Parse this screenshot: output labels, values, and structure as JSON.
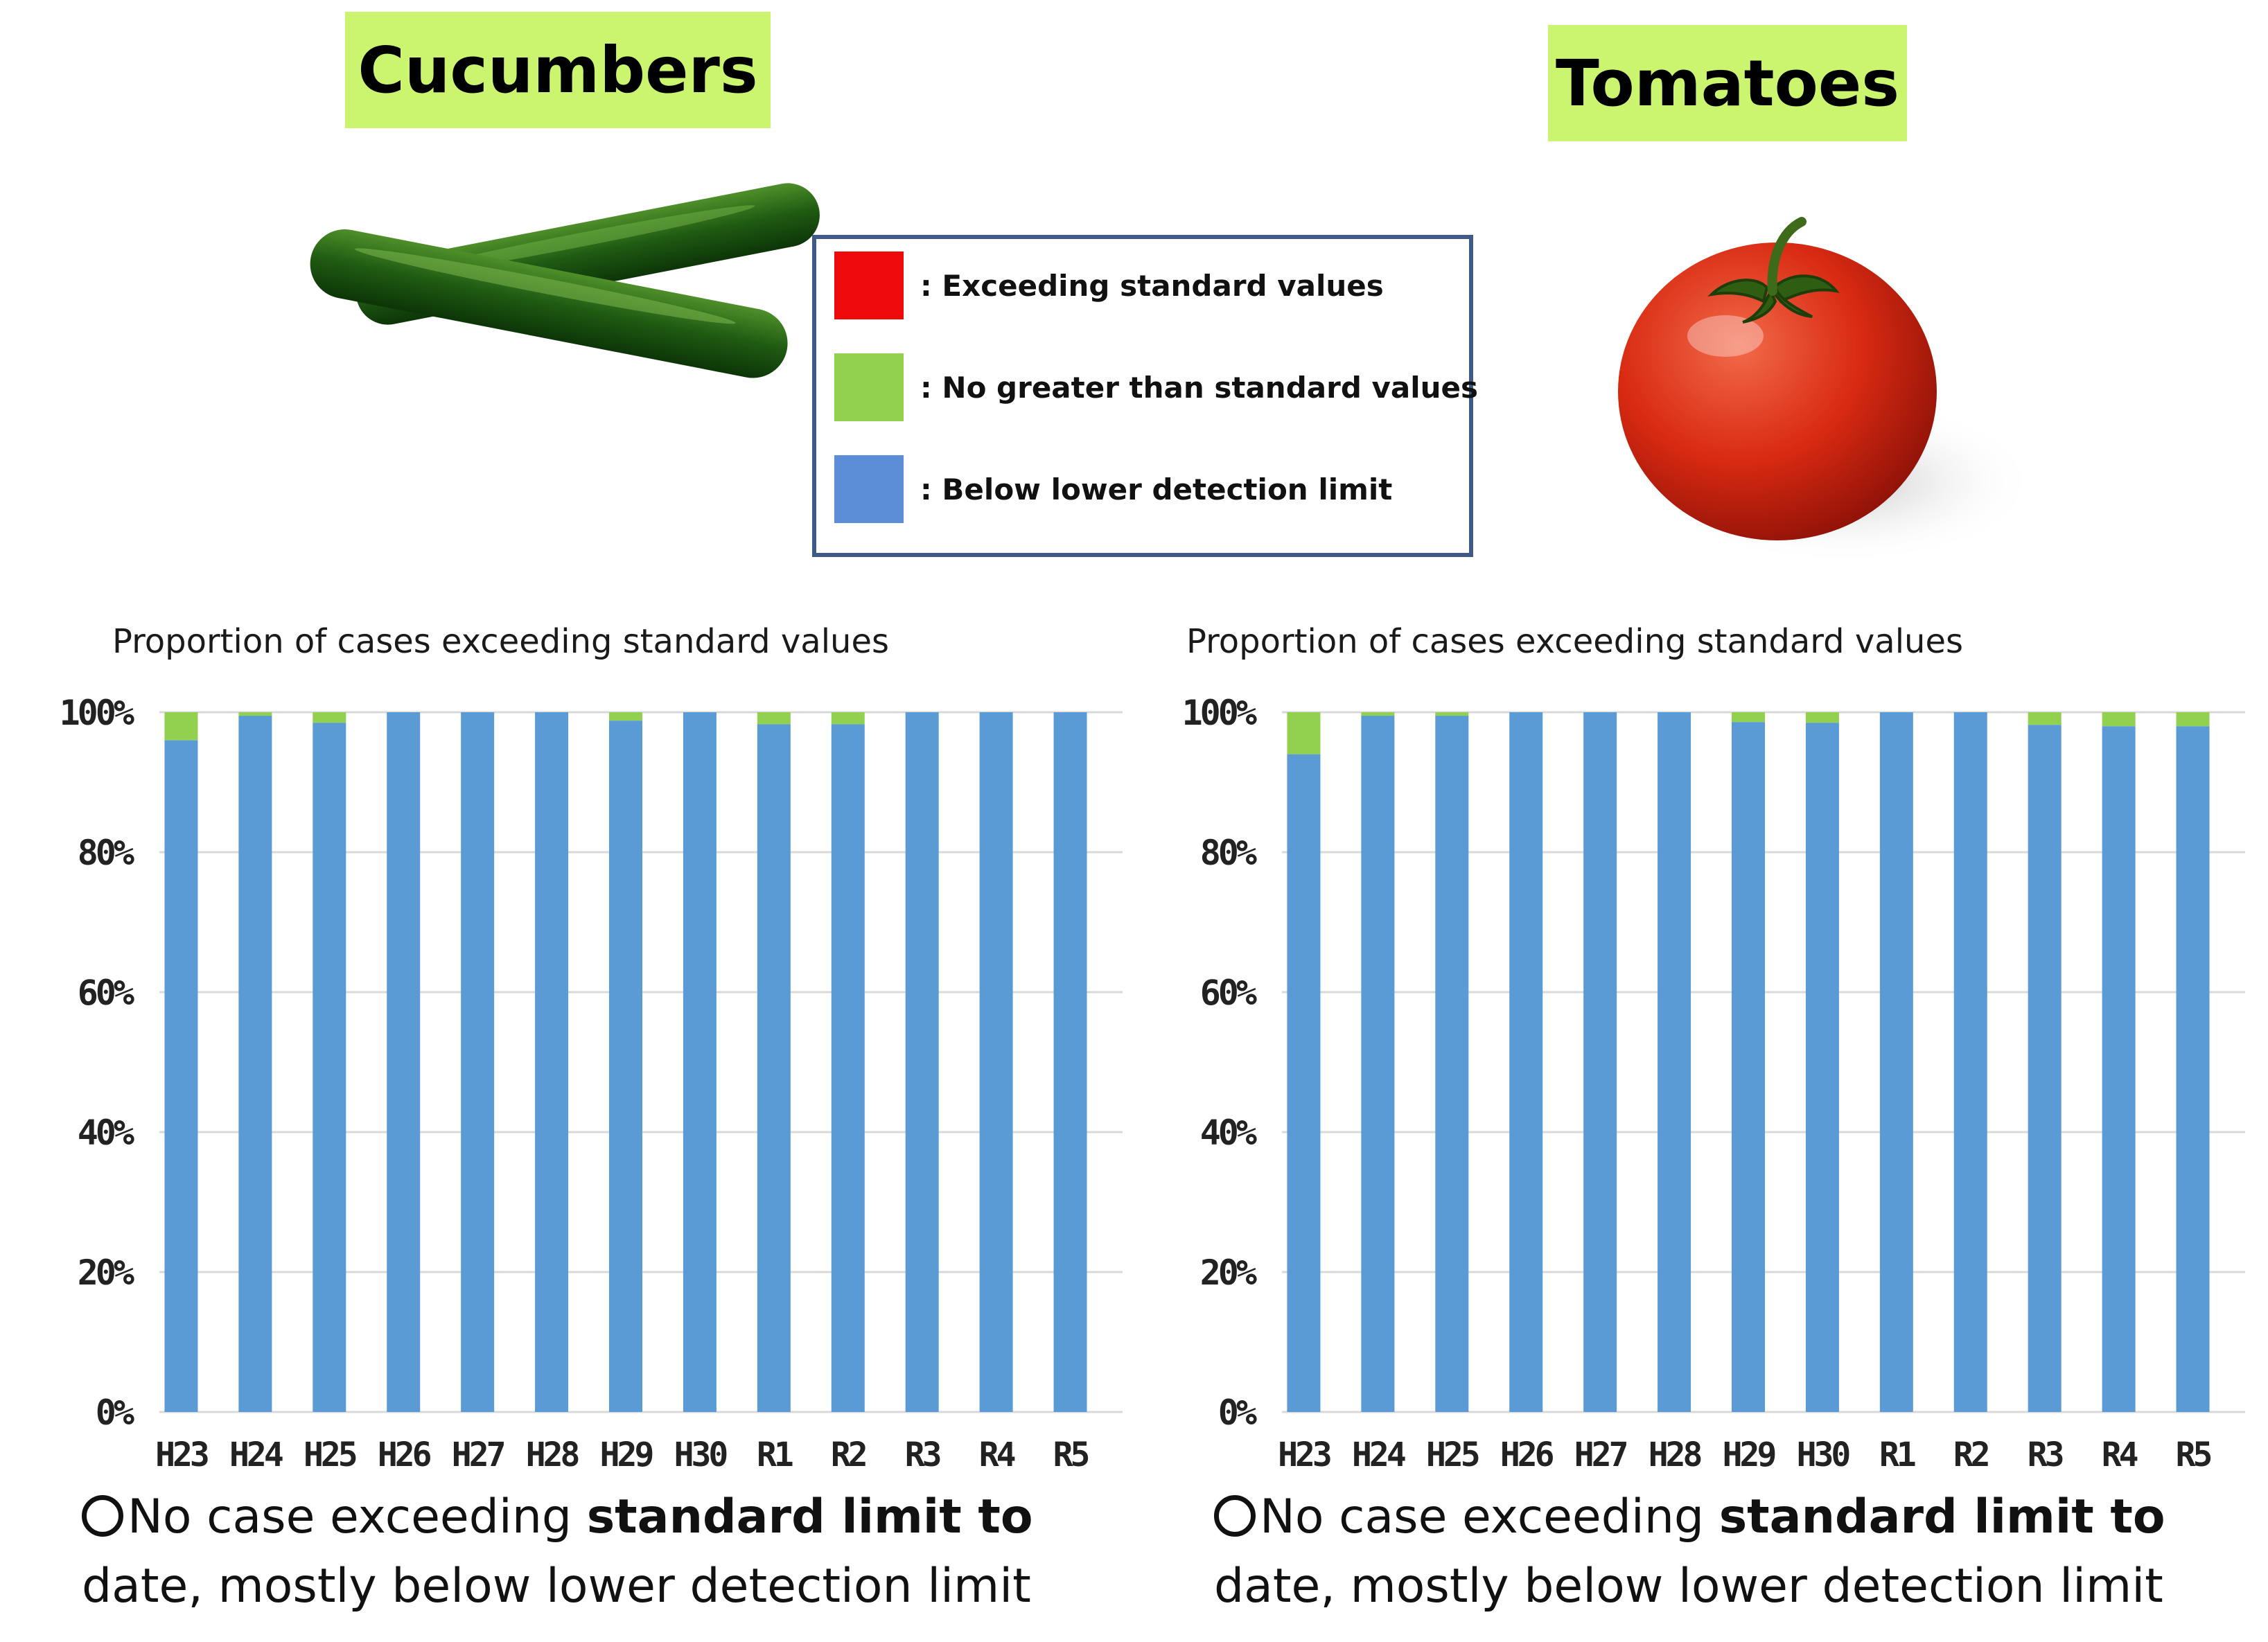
{
  "titles": {
    "left": "Cucumbers",
    "right": "Tomatoes"
  },
  "colors": {
    "exceeding": "#ee0a0a",
    "no_greater": "#92d050",
    "below": "#5b9bd5",
    "grid": "#d9d9d9",
    "legend_below": "#5b8ed6"
  },
  "legend": [
    {
      "label": ": Exceeding standard values",
      "color": "#ee0a0a"
    },
    {
      "label": ": No greater than standard values",
      "color": "#92d050"
    },
    {
      "label": ": Below lower detection limit",
      "color": "#5b8ed6"
    }
  ],
  "images": {
    "left": "cucumbers-image",
    "right": "tomato-image"
  },
  "conclusion": {
    "left": {
      "part1": "No case exceeding ",
      "bold": "standard limit to",
      "line2": "date, mostly below lower detection limit"
    },
    "right": {
      "part1": "No case exceeding ",
      "bold": "standard limit to",
      "line2": "date, mostly below lower detection limit"
    }
  },
  "chart_data": [
    {
      "type": "bar",
      "stacked": true,
      "title": "Proportion of cases exceeding standard values",
      "categories": [
        "H23",
        "H24",
        "H25",
        "H26",
        "H27",
        "H28",
        "H29",
        "H30",
        "R1",
        "R2",
        "R3",
        "R4",
        "R5"
      ],
      "series": [
        {
          "name": "Below lower detection limit",
          "values": [
            96,
            99.5,
            98.5,
            100,
            100,
            100,
            98.8,
            100,
            98.3,
            98.3,
            100,
            100,
            100
          ]
        },
        {
          "name": "No greater than standard values",
          "values": [
            4,
            0.5,
            1.5,
            0,
            0,
            0,
            1.2,
            0,
            1.7,
            1.7,
            0,
            0,
            0
          ]
        },
        {
          "name": "Exceeding standard values",
          "values": [
            0,
            0,
            0,
            0,
            0,
            0,
            0,
            0,
            0,
            0,
            0,
            0,
            0
          ]
        }
      ],
      "yticks": [
        "0%",
        "20%",
        "40%",
        "60%",
        "80%",
        "100%"
      ],
      "ylim": [
        0,
        100
      ],
      "grid": true
    },
    {
      "type": "bar",
      "stacked": true,
      "title": "Proportion of cases exceeding standard values",
      "categories": [
        "H23",
        "H24",
        "H25",
        "H26",
        "H27",
        "H28",
        "H29",
        "H30",
        "R1",
        "R2",
        "R3",
        "R4",
        "R5"
      ],
      "series": [
        {
          "name": "Below lower detection limit",
          "values": [
            94,
            99.5,
            99.5,
            100,
            100,
            100,
            98.6,
            98.5,
            100,
            100,
            98.2,
            98,
            98
          ]
        },
        {
          "name": "No greater than standard values",
          "values": [
            6,
            0.5,
            0.5,
            0,
            0,
            0,
            1.4,
            1.5,
            0,
            0,
            1.8,
            2,
            2
          ]
        },
        {
          "name": "Exceeding standard values",
          "values": [
            0,
            0,
            0,
            0,
            0,
            0,
            0,
            0,
            0,
            0,
            0,
            0,
            0
          ]
        }
      ],
      "yticks": [
        "0%",
        "20%",
        "40%",
        "60%",
        "80%",
        "100%"
      ],
      "ylim": [
        0,
        100
      ],
      "grid": true
    }
  ]
}
